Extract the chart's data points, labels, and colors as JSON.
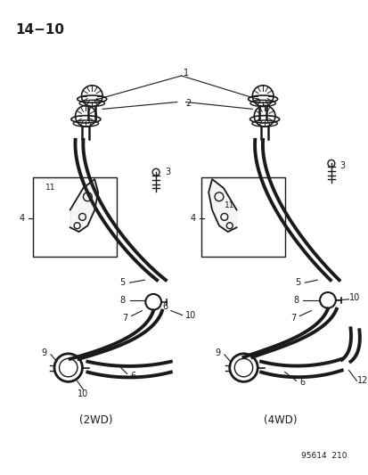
{
  "title": "14−10",
  "background_color": "#ffffff",
  "line_color": "#1a1a1a",
  "diagram_id": "95614  210",
  "caption_2wd": "(2WD)",
  "caption_4wd": "(4WD)"
}
